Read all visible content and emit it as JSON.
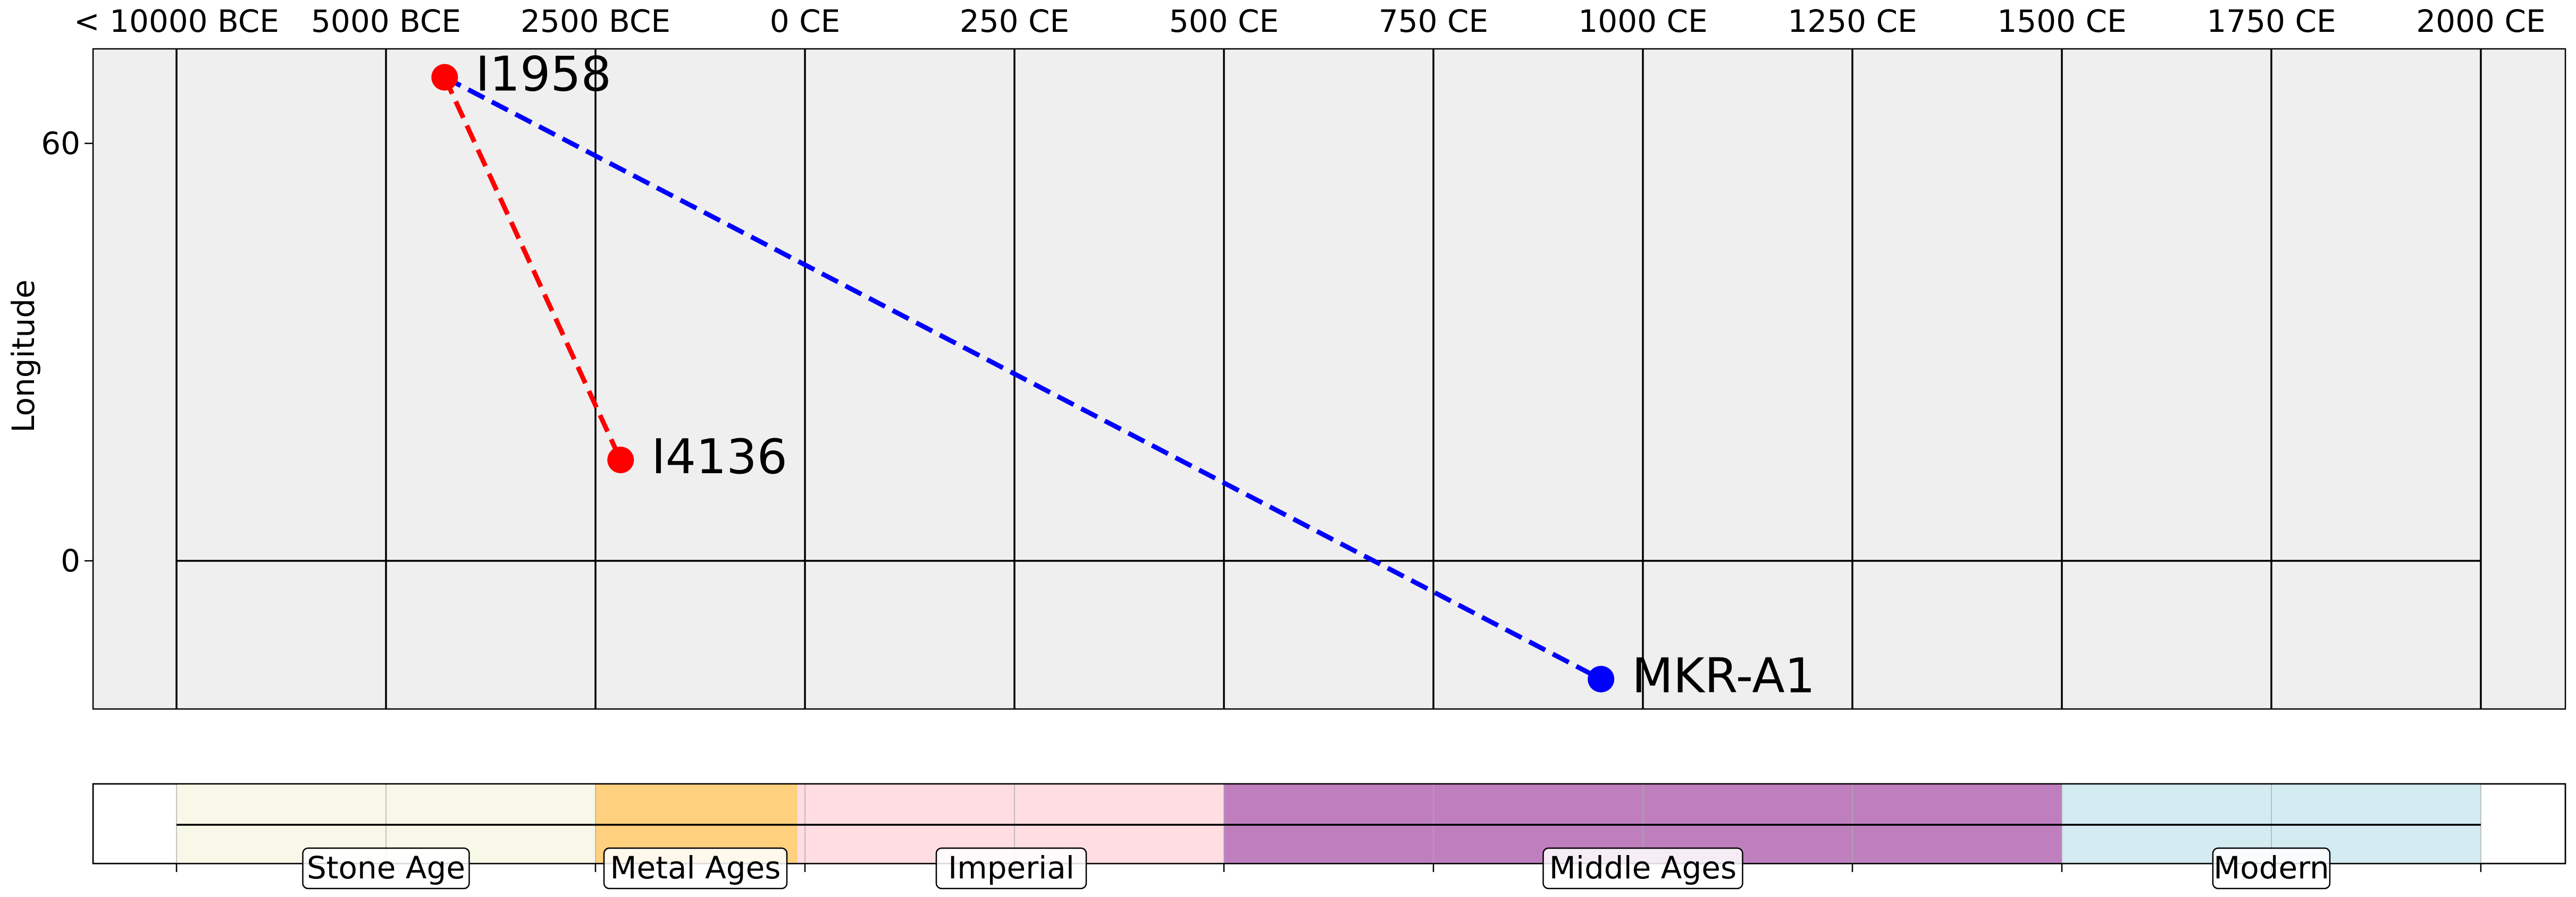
{
  "chart_data": {
    "type": "scatter",
    "ylabel": "Longitude",
    "x_tick_labels": [
      "< 10000 BCE",
      "5000 BCE",
      "2500 BCE",
      "0 CE",
      "250 CE",
      "500 CE",
      "750 CE",
      "1000 CE",
      "1250 CE",
      "1500 CE",
      "1750 CE",
      "2000 CE"
    ],
    "y_ticks": [
      0,
      60
    ],
    "ylim": [
      -21.5,
      73.5
    ],
    "grid": true,
    "points": [
      {
        "label": "I1958",
        "x": "c. 4300 BCE",
        "y": 69.5,
        "color": "#ff0000"
      },
      {
        "label": "I4136",
        "x": "c. 2200 BCE",
        "y": 14.5,
        "color": "#ff0000"
      },
      {
        "label": "MKR-A1",
        "x": "c. 950 CE",
        "y": -17,
        "color": "#0000ff"
      }
    ],
    "links": [
      {
        "from": "I1958",
        "to": "I4136",
        "color": "#ff0000",
        "style": "dashed"
      },
      {
        "from": "I1958",
        "to": "MKR-A1",
        "color": "#0000ff",
        "style": "dashed"
      }
    ],
    "periods": [
      {
        "label": "Stone Age",
        "start": "< 10000 BCE",
        "end": "2500 BCE",
        "color": "#f8f8e8"
      },
      {
        "label": "Metal Ages",
        "start": "2500 BCE",
        "end": "c. 0 CE",
        "color": "#ffd17f"
      },
      {
        "label": "Imperial",
        "start": "c. 0 CE",
        "end": "500 CE",
        "color": "#ffdde3"
      },
      {
        "label": "Middle Ages",
        "start": "500 CE",
        "end": "1500 CE",
        "color": "#bf7fbf"
      },
      {
        "label": "Modern",
        "start": "1500 CE",
        "end": "2000 CE",
        "color": "#d3ebf1"
      }
    ]
  }
}
